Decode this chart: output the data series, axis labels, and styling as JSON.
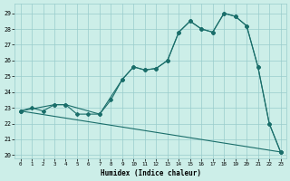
{
  "xlabel": "Humidex (Indice chaleur)",
  "bg_color": "#cceee8",
  "grid_color": "#99cccc",
  "line_color": "#1a6e6a",
  "xlim": [
    -0.5,
    23.5
  ],
  "ylim": [
    19.8,
    29.6
  ],
  "xticks": [
    0,
    1,
    2,
    3,
    4,
    5,
    6,
    7,
    8,
    9,
    10,
    11,
    12,
    13,
    14,
    15,
    16,
    17,
    18,
    19,
    20,
    21,
    22,
    23
  ],
  "yticks": [
    20,
    21,
    22,
    23,
    24,
    25,
    26,
    27,
    28,
    29
  ],
  "line1_x": [
    0,
    1,
    2,
    3,
    4,
    5,
    6,
    7,
    8,
    9,
    10,
    11,
    12,
    13,
    14,
    15,
    16,
    17,
    18,
    19,
    20,
    21,
    22,
    23
  ],
  "line1_y": [
    22.8,
    23.0,
    22.8,
    23.2,
    23.2,
    22.6,
    22.6,
    22.6,
    23.5,
    24.8,
    25.6,
    25.4,
    25.5,
    26.0,
    27.8,
    28.5,
    28.0,
    27.8,
    29.0,
    28.8,
    28.2,
    25.6,
    22.0,
    20.2
  ],
  "line2_x": [
    0,
    3,
    4,
    7,
    9,
    10,
    11,
    12,
    13,
    14,
    15,
    16,
    17,
    18,
    19,
    20,
    21,
    22,
    23
  ],
  "line2_y": [
    22.8,
    23.2,
    23.2,
    22.6,
    24.8,
    25.6,
    25.4,
    25.5,
    26.0,
    27.8,
    28.5,
    28.0,
    27.8,
    29.0,
    28.8,
    28.2,
    25.6,
    22.0,
    20.2
  ],
  "line3_x": [
    0,
    23
  ],
  "line3_y": [
    22.8,
    20.2
  ]
}
